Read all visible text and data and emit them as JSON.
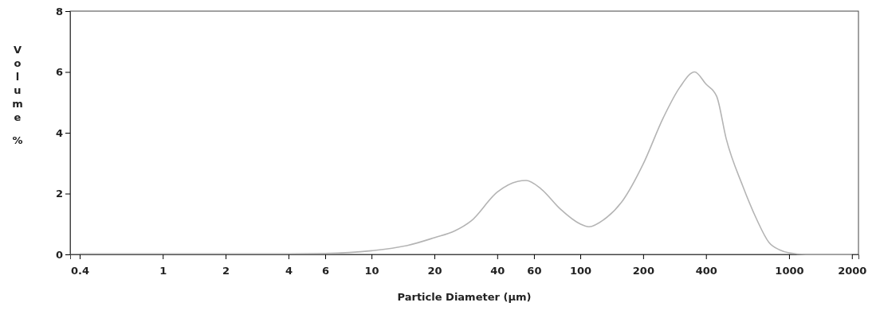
{
  "chart_data": {
    "type": "line",
    "xlabel": "Particle Diameter (µm)",
    "ylabel": "Volume %",
    "log": "x",
    "xlim": [
      0.36,
      2150
    ],
    "ylim": [
      0,
      8
    ],
    "xticks": [
      0.4,
      1,
      2,
      4,
      6,
      10,
      20,
      40,
      60,
      100,
      200,
      400,
      1000,
      2000
    ],
    "yticks": [
      0,
      2,
      4,
      6,
      8
    ],
    "grid": false,
    "marker": "none",
    "line_style": "solid",
    "series": [
      {
        "color": "#b4b4b4",
        "x": [
          0.4,
          1,
          2,
          4,
          6,
          10,
          15,
          20,
          25,
          30,
          40,
          50,
          55,
          65,
          80,
          100,
          110,
          130,
          160,
          200,
          250,
          300,
          353,
          400,
          450,
          500,
          600,
          700,
          800,
          900,
          1000,
          1200,
          2000
        ],
        "values": [
          0.02,
          0.02,
          0.02,
          0.02,
          0.03,
          0.12,
          0.3,
          0.55,
          0.77,
          1.1,
          2.05,
          2.4,
          2.43,
          2.15,
          1.5,
          1.0,
          0.91,
          1.15,
          1.78,
          2.97,
          4.5,
          5.5,
          6.0,
          5.6,
          5.2,
          3.8,
          2.25,
          1.15,
          0.4,
          0.15,
          0.05,
          0.0,
          0.0
        ]
      }
    ]
  }
}
